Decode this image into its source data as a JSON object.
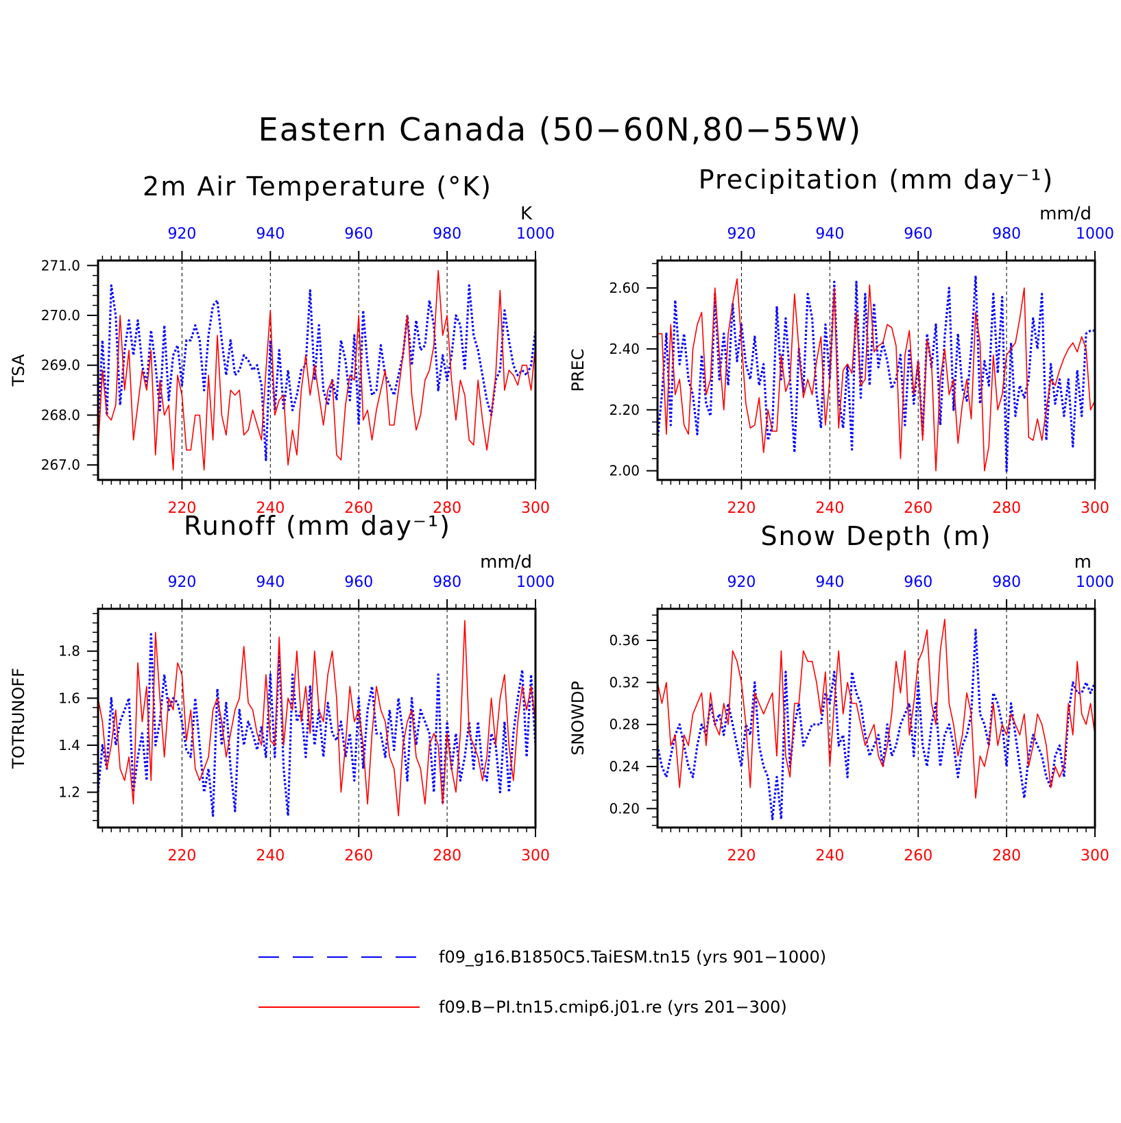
{
  "figure": {
    "title": "Eastern Canada (50−60N,80−55W)"
  },
  "colors": {
    "red_series": "#ff0000",
    "blue_series": "#0000ff",
    "axis": "#000000"
  },
  "legend": {
    "items": [
      {
        "label": "f09_g16.B1850C5.TaiESM.tn15 (yrs 901−1000)",
        "style": "dashed",
        "color": "#0000ff"
      },
      {
        "label": "f09.B−PI.tn15.cmip6.j01.re (yrs 201−300)",
        "style": "solid",
        "color": "#ff0000"
      }
    ]
  },
  "chart_data": [
    {
      "type": "line",
      "title": "2m Air Temperature (°K)",
      "unit_label": "K",
      "ylabel": "TSA",
      "xlim_bottom": [
        201,
        300
      ],
      "xlim_top": [
        901,
        1000
      ],
      "xticks_bottom": [
        220,
        240,
        260,
        280,
        300
      ],
      "xticks_top": [
        920,
        940,
        960,
        980,
        1000
      ],
      "ylim": [
        266.7,
        271.1
      ],
      "yticks": [
        267.0,
        268.0,
        269.0,
        270.0,
        271.0
      ],
      "ytick_labels": [
        "267.0",
        "268.0",
        "269.0",
        "270.0",
        "271.0"
      ],
      "dashed_grid_x": [
        220,
        240,
        260,
        280
      ],
      "series": [
        {
          "axis": "top",
          "style": "dashed",
          "color": "#0000ff",
          "values": [
            267.8,
            269.5,
            268.0,
            270.6,
            270.0,
            268.2,
            269.3,
            269.9,
            269.2,
            269.9,
            269.0,
            268.6,
            269.7,
            269.0,
            268.1,
            269.8,
            268.3,
            269.2,
            269.4,
            268.6,
            269.5,
            269.5,
            269.8,
            269.5,
            268.5,
            269.6,
            270.2,
            270.3,
            269.5,
            268.8,
            269.5,
            268.8,
            268.9,
            269.2,
            269.1,
            268.9,
            269.0,
            268.6,
            267.1,
            269.5,
            268.1,
            269.3,
            268.1,
            268.9,
            268.1,
            268.4,
            268.9,
            269.0,
            270.5,
            268.7,
            269.8,
            268.5,
            268.2,
            268.7,
            268.3,
            269.5,
            269.1,
            268.3,
            269.6,
            267.8,
            270.1,
            269.0,
            268.4,
            268.5,
            269.4,
            268.8,
            268.6,
            268.4,
            268.8,
            269.2,
            270.0,
            269.0,
            269.9,
            269.3,
            269.4,
            270.3,
            269.8,
            268.5,
            269.2,
            268.7,
            269.2,
            270.0,
            269.8,
            268.9,
            270.6,
            269.6,
            269.3,
            268.8,
            268.3,
            268.0,
            268.7,
            268.9,
            270.1,
            269.5,
            269.0,
            268.8,
            268.9,
            268.8,
            269.0,
            269.7
          ]
        },
        {
          "axis": "bottom",
          "style": "solid",
          "color": "#ff0000",
          "values": [
            267.3,
            268.9,
            268.0,
            267.9,
            268.2,
            270.0,
            268.5,
            269.3,
            267.5,
            268.2,
            268.9,
            268.5,
            269.3,
            267.2,
            268.7,
            268.0,
            268.2,
            266.9,
            268.8,
            268.4,
            267.3,
            267.3,
            268.0,
            268.0,
            266.9,
            268.8,
            267.5,
            269.6,
            268.0,
            267.6,
            268.5,
            268.4,
            268.5,
            267.6,
            267.7,
            268.1,
            267.8,
            267.5,
            268.9,
            270.1,
            268.0,
            268.3,
            268.4,
            267.0,
            267.7,
            267.2,
            268.5,
            269.2,
            268.4,
            269.0,
            268.4,
            267.8,
            268.5,
            268.7,
            267.2,
            267.1,
            268.2,
            268.8,
            268.7,
            270.0,
            267.9,
            268.1,
            267.5,
            268.1,
            268.5,
            268.9,
            267.8,
            267.8,
            268.5,
            269.2,
            270.0,
            268.4,
            267.7,
            268.0,
            268.7,
            268.9,
            269.4,
            270.9,
            269.6,
            270.0,
            268.7,
            267.9,
            268.7,
            268.4,
            267.5,
            267.4,
            268.7,
            267.9,
            267.3,
            268.0,
            268.8,
            270.5,
            268.5,
            268.9,
            268.8,
            268.6,
            269.0,
            269.0,
            268.5,
            269.4
          ]
        }
      ]
    },
    {
      "type": "line",
      "title": "Precipitation (mm day⁻¹)",
      "unit_label": "mm/d",
      "ylabel": "PREC",
      "xlim_bottom": [
        201,
        300
      ],
      "xlim_top": [
        901,
        1000
      ],
      "xticks_bottom": [
        220,
        240,
        260,
        280,
        300
      ],
      "xticks_top": [
        920,
        940,
        960,
        980,
        1000
      ],
      "ylim": [
        1.97,
        2.69
      ],
      "yticks": [
        2.0,
        2.2,
        2.4,
        2.6
      ],
      "ytick_labels": [
        "2.00",
        "2.20",
        "2.40",
        "2.60"
      ],
      "dashed_grid_x": [
        220,
        240,
        260,
        280
      ],
      "series": [
        {
          "axis": "top",
          "style": "dashed",
          "color": "#0000ff",
          "values": [
            2.1,
            2.25,
            2.45,
            2.15,
            2.56,
            2.35,
            2.45,
            2.3,
            2.25,
            2.12,
            2.38,
            2.22,
            2.18,
            2.58,
            2.3,
            2.45,
            2.28,
            2.55,
            2.36,
            2.48,
            2.35,
            2.3,
            2.44,
            2.28,
            2.35,
            2.1,
            2.15,
            2.54,
            2.3,
            2.5,
            2.3,
            2.06,
            2.4,
            2.26,
            2.58,
            2.5,
            2.25,
            2.14,
            2.48,
            2.3,
            2.62,
            2.24,
            2.14,
            2.35,
            2.07,
            2.62,
            2.24,
            2.58,
            2.28,
            2.55,
            2.34,
            2.42,
            2.36,
            2.27,
            2.3,
            2.38,
            2.15,
            2.4,
            2.22,
            2.36,
            2.12,
            2.45,
            2.34,
            2.48,
            2.15,
            2.44,
            2.6,
            2.2,
            2.45,
            2.27,
            2.23,
            2.4,
            2.64,
            2.22,
            2.36,
            2.28,
            2.58,
            2.32,
            2.57,
            2.0,
            2.42,
            2.18,
            2.28,
            2.24,
            2.3,
            2.5,
            2.4,
            2.58,
            2.1,
            2.35,
            2.22,
            2.3,
            2.18,
            2.3,
            2.08,
            2.33,
            2.18,
            2.45,
            2.46,
            2.46
          ]
        },
        {
          "axis": "bottom",
          "style": "solid",
          "color": "#ff0000",
          "values": [
            2.45,
            2.45,
            2.12,
            2.48,
            2.25,
            2.3,
            2.15,
            2.12,
            2.4,
            2.48,
            2.52,
            2.25,
            2.3,
            2.6,
            2.38,
            2.2,
            2.45,
            2.55,
            2.63,
            2.42,
            2.22,
            2.14,
            2.15,
            2.24,
            2.06,
            2.2,
            2.13,
            2.13,
            2.38,
            2.26,
            2.3,
            2.58,
            2.4,
            2.24,
            2.3,
            2.25,
            2.36,
            2.44,
            2.15,
            2.3,
            2.6,
            2.14,
            2.33,
            2.35,
            2.32,
            2.52,
            2.28,
            2.3,
            2.61,
            2.39,
            2.41,
            2.42,
            2.48,
            2.47,
            2.41,
            2.04,
            2.38,
            2.46,
            2.25,
            2.36,
            2.1,
            2.43,
            2.36,
            2.0,
            2.3,
            2.4,
            2.25,
            2.3,
            2.09,
            2.22,
            2.3,
            2.17,
            2.52,
            2.42,
            2.0,
            2.08,
            2.38,
            2.2,
            2.25,
            2.38,
            2.4,
            2.42,
            2.5,
            2.6,
            2.11,
            2.1,
            2.17,
            2.1,
            2.2,
            2.3,
            2.28,
            2.33,
            2.37,
            2.4,
            2.42,
            2.39,
            2.44,
            2.4,
            2.2,
            2.23
          ]
        }
      ]
    },
    {
      "type": "line",
      "title": "Runoff (mm day⁻¹)",
      "unit_label": "mm/d",
      "ylabel": "TOTRUNOFF",
      "xlim_bottom": [
        201,
        300
      ],
      "xlim_top": [
        901,
        1000
      ],
      "xticks_bottom": [
        220,
        240,
        260,
        280,
        300
      ],
      "xticks_top": [
        920,
        940,
        960,
        980,
        1000
      ],
      "ylim": [
        1.05,
        1.98
      ],
      "yticks": [
        1.2,
        1.4,
        1.6,
        1.8
      ],
      "ytick_labels": [
        "1.2",
        "1.4",
        "1.6",
        "1.8"
      ],
      "dashed_grid_x": [
        220,
        240,
        260,
        280
      ],
      "series": [
        {
          "axis": "top",
          "style": "dashed",
          "color": "#0000ff",
          "values": [
            1.2,
            1.4,
            1.3,
            1.6,
            1.4,
            1.5,
            1.55,
            1.6,
            1.2,
            1.35,
            1.45,
            1.25,
            1.88,
            1.4,
            1.5,
            1.7,
            1.55,
            1.6,
            1.58,
            1.5,
            1.38,
            1.35,
            1.6,
            1.4,
            1.2,
            1.3,
            1.1,
            1.64,
            1.4,
            1.58,
            1.3,
            1.12,
            1.55,
            1.4,
            1.5,
            1.45,
            1.38,
            1.48,
            1.35,
            1.7,
            1.35,
            1.8,
            1.3,
            1.1,
            1.7,
            1.5,
            1.55,
            1.35,
            1.65,
            1.4,
            1.55,
            1.35,
            1.58,
            1.45,
            1.42,
            1.5,
            1.35,
            1.45,
            1.25,
            1.6,
            1.3,
            1.55,
            1.65,
            1.45,
            1.45,
            1.35,
            1.55,
            1.38,
            1.6,
            1.45,
            1.25,
            1.6,
            1.4,
            1.55,
            1.5,
            1.45,
            1.2,
            1.7,
            1.15,
            1.5,
            1.3,
            1.45,
            1.25,
            1.35,
            1.5,
            1.3,
            1.5,
            1.3,
            1.25,
            1.45,
            1.4,
            1.2,
            1.5,
            1.2,
            1.45,
            1.6,
            1.72,
            1.35,
            1.7,
            1.4
          ]
        },
        {
          "axis": "bottom",
          "style": "solid",
          "color": "#ff0000",
          "values": [
            1.6,
            1.5,
            1.3,
            1.4,
            1.55,
            1.3,
            1.25,
            1.35,
            1.15,
            1.75,
            1.5,
            1.65,
            1.25,
            1.88,
            1.6,
            1.35,
            1.6,
            1.55,
            1.75,
            1.7,
            1.42,
            1.55,
            1.3,
            1.25,
            1.3,
            1.35,
            1.55,
            1.6,
            1.5,
            1.35,
            1.45,
            1.55,
            1.6,
            1.82,
            1.58,
            1.55,
            1.45,
            1.4,
            1.7,
            1.42,
            1.4,
            1.86,
            1.4,
            1.6,
            1.55,
            1.8,
            1.5,
            1.65,
            1.45,
            1.8,
            1.55,
            1.5,
            1.7,
            1.8,
            1.6,
            1.2,
            1.4,
            1.65,
            1.5,
            1.55,
            1.4,
            1.15,
            1.45,
            1.65,
            1.55,
            1.5,
            1.35,
            1.3,
            1.1,
            1.4,
            1.5,
            1.55,
            1.35,
            1.3,
            1.15,
            1.4,
            1.45,
            1.4,
            1.15,
            1.45,
            1.3,
            1.2,
            1.45,
            1.93,
            1.45,
            1.4,
            1.35,
            1.25,
            1.35,
            1.6,
            1.4,
            1.6,
            1.7,
            1.4,
            1.25,
            1.5,
            1.65,
            1.55,
            1.65,
            1.5
          ]
        }
      ]
    },
    {
      "type": "line",
      "title": "Snow Depth (m)",
      "unit_label": "m",
      "ylabel": "SNOWDP",
      "xlim_bottom": [
        201,
        300
      ],
      "xlim_top": [
        901,
        1000
      ],
      "xticks_bottom": [
        220,
        240,
        260,
        280,
        300
      ],
      "xticks_top": [
        920,
        940,
        960,
        980,
        1000
      ],
      "ylim": [
        0.182,
        0.39
      ],
      "yticks": [
        0.2,
        0.24,
        0.28,
        0.32,
        0.36
      ],
      "ytick_labels": [
        "0.20",
        "0.24",
        "0.28",
        "0.32",
        "0.36"
      ],
      "dashed_grid_x": [
        220,
        240,
        260,
        280
      ],
      "series": [
        {
          "axis": "top",
          "style": "dashed",
          "color": "#0000ff",
          "values": [
            0.26,
            0.24,
            0.23,
            0.25,
            0.27,
            0.28,
            0.26,
            0.24,
            0.23,
            0.26,
            0.28,
            0.27,
            0.3,
            0.28,
            0.29,
            0.27,
            0.3,
            0.28,
            0.26,
            0.24,
            0.28,
            0.27,
            0.32,
            0.26,
            0.24,
            0.23,
            0.19,
            0.23,
            0.19,
            0.33,
            0.24,
            0.28,
            0.3,
            0.26,
            0.27,
            0.28,
            0.28,
            0.28,
            0.31,
            0.3,
            0.33,
            0.26,
            0.27,
            0.23,
            0.33,
            0.31,
            0.3,
            0.27,
            0.25,
            0.26,
            0.27,
            0.24,
            0.28,
            0.25,
            0.26,
            0.28,
            0.29,
            0.3,
            0.25,
            0.32,
            0.26,
            0.24,
            0.28,
            0.3,
            0.24,
            0.27,
            0.28,
            0.26,
            0.23,
            0.26,
            0.27,
            0.29,
            0.37,
            0.29,
            0.28,
            0.26,
            0.31,
            0.3,
            0.28,
            0.24,
            0.3,
            0.27,
            0.24,
            0.21,
            0.25,
            0.27,
            0.26,
            0.25,
            0.23,
            0.22,
            0.25,
            0.26,
            0.23,
            0.29,
            0.32,
            0.31,
            0.31,
            0.32,
            0.31,
            0.32
          ]
        },
        {
          "axis": "bottom",
          "style": "solid",
          "color": "#ff0000",
          "values": [
            0.32,
            0.3,
            0.32,
            0.26,
            0.27,
            0.22,
            0.27,
            0.26,
            0.29,
            0.3,
            0.31,
            0.26,
            0.31,
            0.28,
            0.27,
            0.3,
            0.28,
            0.35,
            0.34,
            0.32,
            0.28,
            0.22,
            0.31,
            0.3,
            0.29,
            0.3,
            0.31,
            0.25,
            0.35,
            0.25,
            0.23,
            0.3,
            0.3,
            0.35,
            0.34,
            0.34,
            0.32,
            0.29,
            0.33,
            0.24,
            0.3,
            0.35,
            0.29,
            0.32,
            0.3,
            0.3,
            0.28,
            0.26,
            0.27,
            0.28,
            0.25,
            0.24,
            0.26,
            0.29,
            0.34,
            0.31,
            0.35,
            0.27,
            0.3,
            0.34,
            0.35,
            0.37,
            0.3,
            0.28,
            0.35,
            0.38,
            0.3,
            0.28,
            0.25,
            0.27,
            0.31,
            0.29,
            0.21,
            0.25,
            0.24,
            0.26,
            0.3,
            0.26,
            0.28,
            0.27,
            0.29,
            0.28,
            0.27,
            0.29,
            0.24,
            0.26,
            0.29,
            0.28,
            0.26,
            0.22,
            0.24,
            0.23,
            0.24,
            0.3,
            0.27,
            0.34,
            0.29,
            0.28,
            0.3,
            0.27
          ]
        }
      ]
    }
  ]
}
